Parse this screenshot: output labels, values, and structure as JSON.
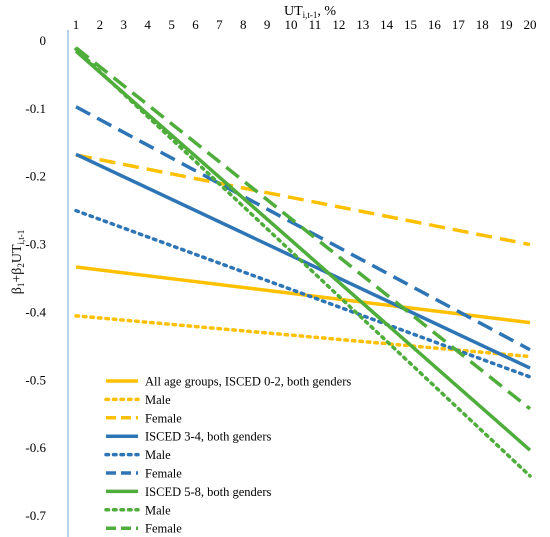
{
  "chart_data": {
    "type": "line",
    "title": "",
    "x": [
      1,
      20
    ],
    "x_ticks": [
      "1",
      "2",
      "3",
      "4",
      "5",
      "6",
      "7",
      "8",
      "9",
      "10",
      "11",
      "12",
      "13",
      "14",
      "15",
      "16",
      "17",
      "18",
      "19",
      "20"
    ],
    "y_ticks": [
      "0",
      "-0.1",
      "-0.2",
      "-0.3",
      "-0.4",
      "-0.5",
      "-0.6",
      "-0.7"
    ],
    "xlim": [
      1,
      20
    ],
    "ylim": [
      -0.7,
      0
    ],
    "x_axis_position": "top",
    "xlabel": {
      "main": "UT",
      "sub": "i,t-1",
      "suffix": ", %"
    },
    "ylabel": {
      "p1": "β",
      "s1": "1",
      "mid": "+β",
      "s2": "2",
      "p3": "UT",
      "s3": "i,t-1"
    },
    "grid": false,
    "legend_position": "bottom-left",
    "series": [
      {
        "name": "All age groups, ISCED 0-2, both genders",
        "color": "#FFC000",
        "style": "solid",
        "values": [
          -0.333,
          -0.415
        ]
      },
      {
        "name": "Male",
        "color": "#FFC000",
        "style": "dotted",
        "values": [
          -0.405,
          -0.465
        ]
      },
      {
        "name": "Female",
        "color": "#FFC000",
        "style": "dashed",
        "values": [
          -0.168,
          -0.3
        ]
      },
      {
        "name": "ISCED 3-4, both genders",
        "color": "#2E75B6",
        "style": "solid",
        "values": [
          -0.167,
          -0.482
        ]
      },
      {
        "name": "Male",
        "color": "#2E75B6",
        "style": "dotted",
        "values": [
          -0.25,
          -0.495
        ]
      },
      {
        "name": "Female",
        "color": "#2E75B6",
        "style": "dashed",
        "values": [
          -0.097,
          -0.455
        ]
      },
      {
        "name": "ISCED 5-8, both genders",
        "color": "#4EAD3B",
        "style": "solid",
        "values": [
          -0.015,
          -0.603
        ]
      },
      {
        "name": "Male",
        "color": "#4EAD3B",
        "style": "dotted",
        "values": [
          -0.012,
          -0.641
        ]
      },
      {
        "name": "Female",
        "color": "#4EAD3B",
        "style": "dashed",
        "values": [
          -0.01,
          -0.542
        ]
      }
    ]
  }
}
